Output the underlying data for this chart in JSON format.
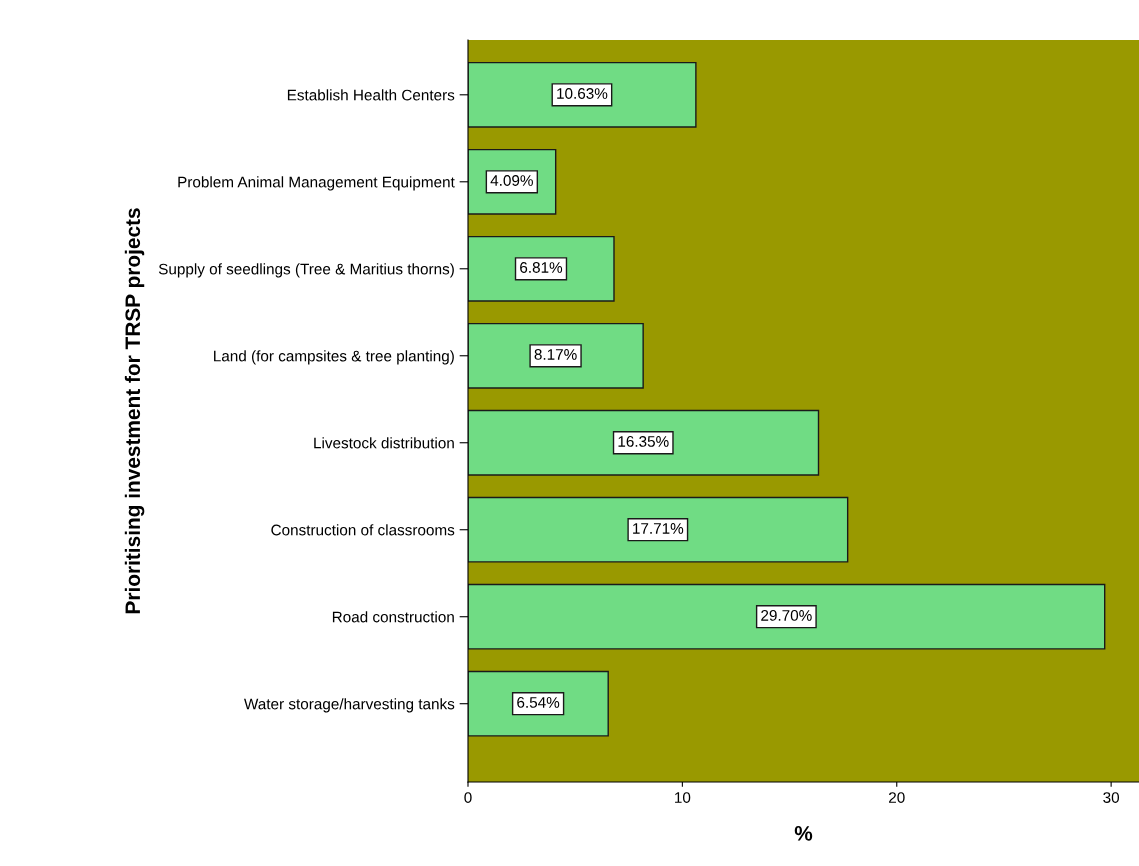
{
  "chart_data": {
    "type": "bar",
    "orientation": "horizontal",
    "ylabel": "Prioritising investment for TRSP projects",
    "xlabel": "%",
    "categories": [
      "Establish Health Centers",
      "Problem Animal Management Equipment",
      "Supply of seedlings (Tree & Maritius thorns)",
      "Land (for campsites & tree planting)",
      "Livestock distribution",
      "Construction of classrooms",
      "Road construction",
      "Water storage/harvesting tanks"
    ],
    "values": [
      10.63,
      4.09,
      6.81,
      8.17,
      16.35,
      17.71,
      29.7,
      6.54
    ],
    "value_labels": [
      "10.63%",
      "4.09%",
      "6.81%",
      "8.17%",
      "16.35%",
      "17.71%",
      "29.70%",
      "6.54%"
    ],
    "color": "#70dc84",
    "xlim": [
      0,
      31.3
    ],
    "xticks": [
      0,
      10,
      20,
      30
    ],
    "grid": false,
    "legend": false
  }
}
